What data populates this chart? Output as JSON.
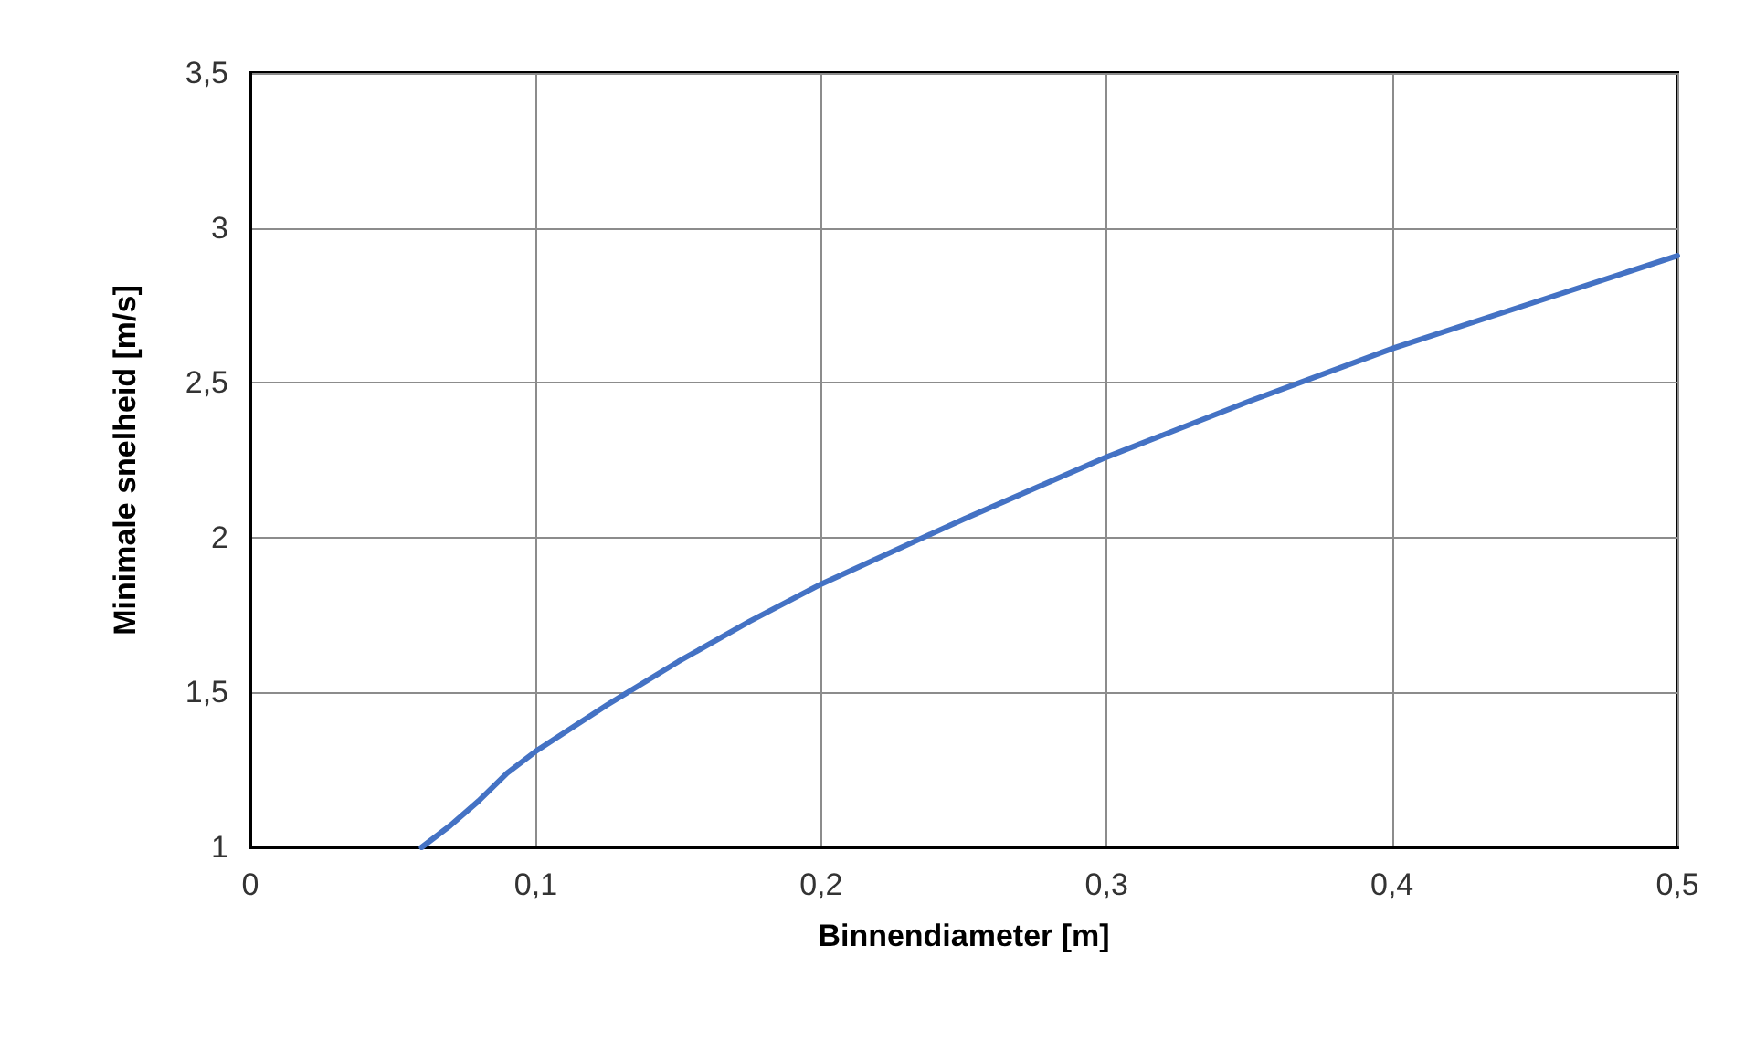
{
  "chart_data": {
    "type": "line",
    "xlabel": "Binnendiameter [m]",
    "ylabel": "Minimale snelheid [m/s]",
    "x": [
      0.06,
      0.07,
      0.08,
      0.09,
      0.1,
      0.125,
      0.15,
      0.175,
      0.2,
      0.25,
      0.3,
      0.35,
      0.4,
      0.45,
      0.5
    ],
    "series": [
      {
        "color": "#4472c4",
        "values": [
          1.0,
          1.07,
          1.15,
          1.24,
          1.31,
          1.46,
          1.6,
          1.73,
          1.85,
          2.06,
          2.26,
          2.44,
          2.61,
          2.76,
          2.91
        ]
      }
    ],
    "xlim": [
      0,
      0.5
    ],
    "xticks": [
      0,
      {
        "value": 0.1,
        "label": "0,1"
      },
      {
        "value": 0.2,
        "label": "0,2"
      },
      {
        "value": 0.3,
        "label": "0,3"
      },
      {
        "value": 0.4,
        "label": "0,4"
      },
      {
        "value": 0.5,
        "label": "0,5"
      }
    ],
    "ylim": [
      1,
      3.5
    ],
    "yticks": [
      1,
      {
        "value": 1.5,
        "label": "1,5"
      },
      2,
      {
        "value": 2.5,
        "label": "2,5"
      },
      3,
      {
        "value": 3.5,
        "label": "3,5"
      }
    ],
    "grid": true,
    "marker": "none",
    "line_style": "solid"
  }
}
